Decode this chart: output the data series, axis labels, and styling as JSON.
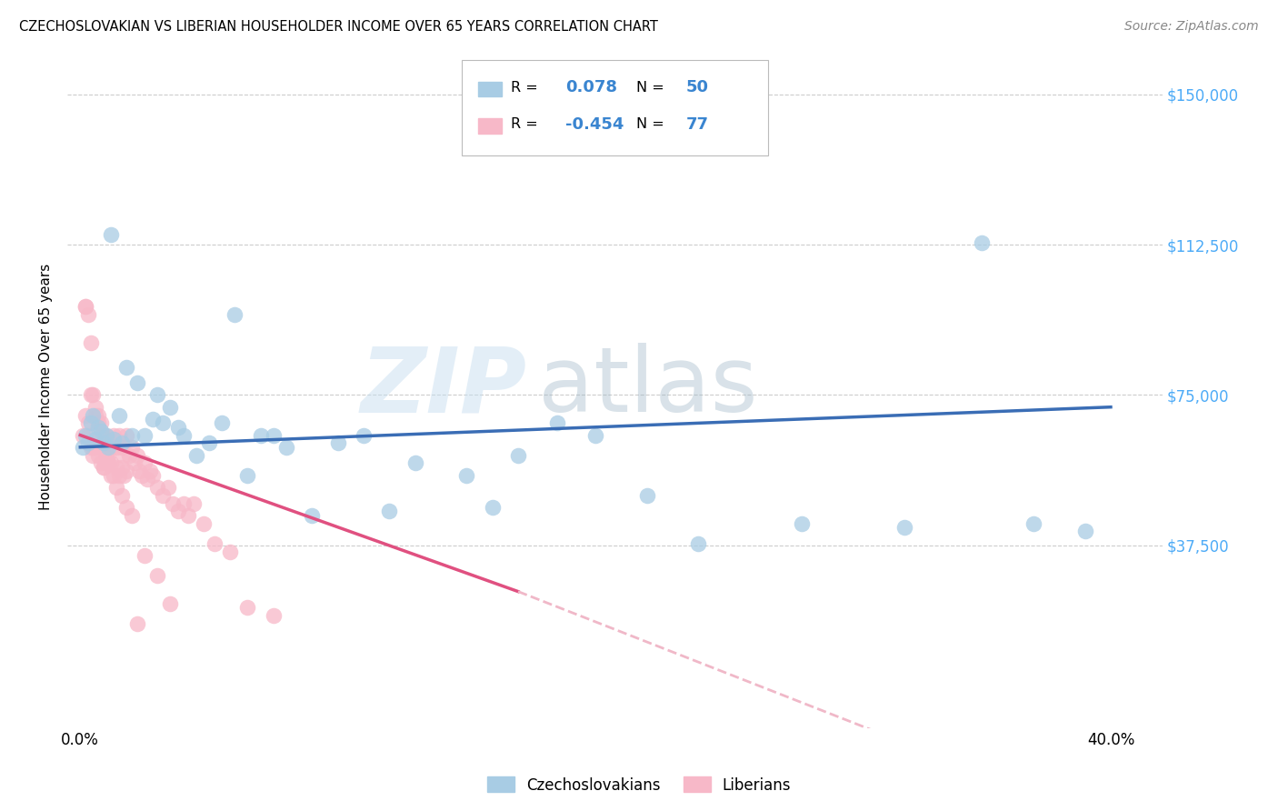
{
  "title": "CZECHOSLOVAKIAN VS LIBERIAN HOUSEHOLDER INCOME OVER 65 YEARS CORRELATION CHART",
  "source": "Source: ZipAtlas.com",
  "ylabel_label": "Householder Income Over 65 years",
  "y_ticks": [
    0,
    37500,
    75000,
    112500,
    150000
  ],
  "y_tick_labels": [
    "",
    "$37,500",
    "$75,000",
    "$112,500",
    "$150,000"
  ],
  "xlim": [
    -0.005,
    0.42
  ],
  "ylim": [
    -8000,
    162000
  ],
  "czech_color": "#a8cce4",
  "liberian_color": "#f7b8c8",
  "czech_line_color": "#3a6db5",
  "liberian_line_color": "#e05080",
  "liberian_line_dashed_color": "#f0b8c8",
  "R_czech": "0.078",
  "N_czech": "50",
  "R_liberian": "-0.454",
  "N_liberian": "77",
  "watermark_zip": "ZIP",
  "watermark_atlas": "atlas",
  "czech_x": [
    0.001,
    0.002,
    0.003,
    0.004,
    0.005,
    0.006,
    0.007,
    0.008,
    0.009,
    0.01,
    0.011,
    0.012,
    0.013,
    0.015,
    0.016,
    0.018,
    0.02,
    0.022,
    0.025,
    0.028,
    0.03,
    0.032,
    0.035,
    0.038,
    0.04,
    0.045,
    0.05,
    0.055,
    0.06,
    0.065,
    0.07,
    0.075,
    0.08,
    0.09,
    0.1,
    0.11,
    0.12,
    0.13,
    0.15,
    0.16,
    0.17,
    0.185,
    0.2,
    0.22,
    0.24,
    0.28,
    0.32,
    0.35,
    0.37,
    0.39
  ],
  "czech_y": [
    62000,
    65000,
    63000,
    68000,
    70000,
    64000,
    67000,
    66000,
    63000,
    65000,
    62000,
    115000,
    64000,
    70000,
    63000,
    82000,
    65000,
    78000,
    65000,
    69000,
    75000,
    68000,
    72000,
    67000,
    65000,
    60000,
    63000,
    68000,
    95000,
    55000,
    65000,
    65000,
    62000,
    45000,
    63000,
    65000,
    46000,
    58000,
    55000,
    47000,
    60000,
    68000,
    65000,
    50000,
    38000,
    43000,
    42000,
    113000,
    43000,
    41000
  ],
  "liberian_x": [
    0.001,
    0.002,
    0.002,
    0.003,
    0.003,
    0.004,
    0.004,
    0.005,
    0.005,
    0.006,
    0.006,
    0.007,
    0.007,
    0.008,
    0.008,
    0.009,
    0.009,
    0.01,
    0.01,
    0.011,
    0.011,
    0.012,
    0.012,
    0.013,
    0.013,
    0.014,
    0.014,
    0.015,
    0.015,
    0.016,
    0.016,
    0.017,
    0.017,
    0.018,
    0.018,
    0.019,
    0.02,
    0.021,
    0.022,
    0.023,
    0.024,
    0.025,
    0.026,
    0.027,
    0.028,
    0.03,
    0.032,
    0.034,
    0.036,
    0.038,
    0.04,
    0.042,
    0.044,
    0.048,
    0.052,
    0.058,
    0.065,
    0.075,
    0.002,
    0.003,
    0.004,
    0.005,
    0.006,
    0.007,
    0.008,
    0.009,
    0.01,
    0.011,
    0.012,
    0.014,
    0.016,
    0.018,
    0.02,
    0.025,
    0.03,
    0.035,
    0.022
  ],
  "liberian_y": [
    65000,
    97000,
    70000,
    95000,
    68000,
    88000,
    62000,
    75000,
    60000,
    72000,
    62000,
    70000,
    60000,
    68000,
    58000,
    65000,
    57000,
    65000,
    58000,
    63000,
    60000,
    62000,
    58000,
    65000,
    55000,
    62000,
    57000,
    65000,
    55000,
    62000,
    57000,
    60000,
    55000,
    65000,
    56000,
    60000,
    62000,
    58000,
    60000,
    56000,
    55000,
    58000,
    54000,
    56000,
    55000,
    52000,
    50000,
    52000,
    48000,
    46000,
    48000,
    45000,
    48000,
    43000,
    38000,
    36000,
    22000,
    20000,
    97000,
    65000,
    75000,
    62000,
    70000,
    68000,
    65000,
    57000,
    60000,
    58000,
    55000,
    52000,
    50000,
    47000,
    45000,
    35000,
    30000,
    23000,
    18000
  ]
}
